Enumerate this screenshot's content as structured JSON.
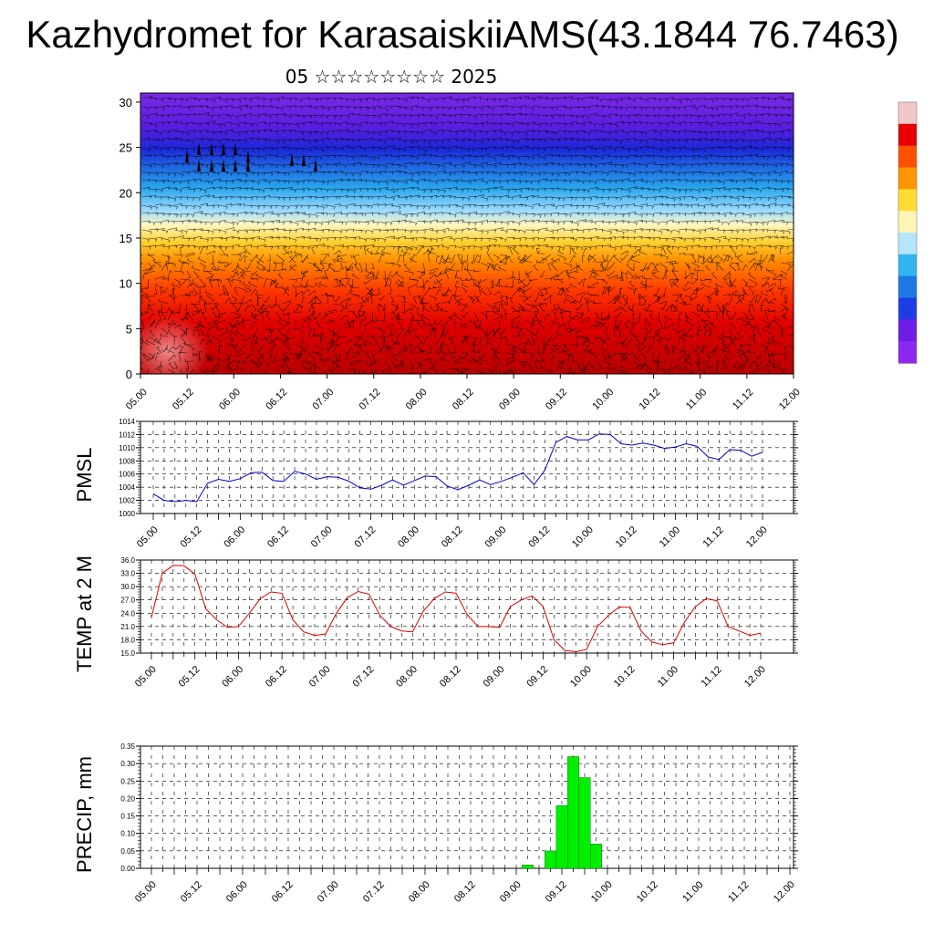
{
  "title": "Kazhydromet for KarasaiskiiAMS(43.1844 76.7463)",
  "subtitle": "05 ☆☆☆☆☆☆☆☆ 2025",
  "time_labels": [
    "05.00",
    "05.12",
    "06.00",
    "06.12",
    "07.00",
    "07.12",
    "08.00",
    "08.12",
    "09.00",
    "09.12",
    "10.00",
    "10.12",
    "11.00",
    "11.12",
    "12.00"
  ],
  "chart_data": [
    {
      "type": "heatmap",
      "title": "",
      "ylabel": "",
      "ylim": [
        0,
        31
      ],
      "yticks": [
        0,
        5,
        10,
        15,
        20,
        25,
        30
      ],
      "x": [
        "05.00",
        "05.12",
        "06.00",
        "06.12",
        "07.00",
        "07.12",
        "08.00",
        "08.12",
        "09.00",
        "09.12",
        "10.00",
        "10.12",
        "11.00",
        "11.12",
        "12.00"
      ],
      "colorbar_colors": [
        "#f0c8c8",
        "#e60000",
        "#ff5000",
        "#ff9600",
        "#ffdc32",
        "#fff5b4",
        "#b4e6ff",
        "#32b4f0",
        "#1e78e6",
        "#1e3ce6",
        "#6e1ee6",
        "#8c28f0"
      ],
      "note_wind_barbs": true
    },
    {
      "type": "line",
      "ylabel": "PMSL",
      "ylim": [
        1000,
        1014
      ],
      "yticks": [
        1000,
        1002,
        1004,
        1006,
        1008,
        1010,
        1012,
        1014
      ],
      "color": "#0000cc",
      "series": [
        {
          "values": [
            1003.0,
            1002.0,
            1001.8,
            1002.0,
            1001.8,
            1004.6,
            1005.2,
            1004.9,
            1005.3,
            1006.2,
            1006.3,
            1005.0,
            1004.9,
            1006.4,
            1006.0,
            1005.2,
            1005.6,
            1005.5,
            1004.9,
            1003.9,
            1003.7,
            1004.3,
            1005.1,
            1004.3,
            1005.0,
            1005.7,
            1005.6,
            1004.2,
            1003.6,
            1004.3,
            1005.1,
            1004.4,
            1004.9,
            1005.5,
            1006.2,
            1004.4,
            1006.6,
            1010.8,
            1011.7,
            1011.2,
            1011.2,
            1012.1,
            1012.0,
            1010.6,
            1010.4,
            1010.7,
            1010.4,
            1009.9,
            1010.1,
            1010.6,
            1010.2,
            1008.6,
            1008.2,
            1009.7,
            1009.6,
            1008.7,
            1009.3
          ]
        }
      ]
    },
    {
      "type": "line",
      "ylabel": "TEMP at 2 M",
      "ylim": [
        15,
        36
      ],
      "yticks": [
        "15.0",
        "18.0",
        "21.0",
        "24.0",
        "27.0",
        "30.0",
        "33.0",
        "36.0"
      ],
      "color": "#dd0000",
      "series": [
        {
          "values": [
            23.0,
            33.0,
            34.8,
            34.7,
            32.8,
            25.0,
            22.5,
            20.8,
            21.0,
            24.0,
            27.3,
            28.8,
            28.5,
            22.5,
            19.8,
            19.0,
            19.3,
            24.0,
            27.5,
            28.9,
            28.3,
            23.5,
            21.0,
            20.0,
            19.8,
            24.5,
            27.3,
            28.8,
            28.5,
            23.8,
            21.0,
            21.0,
            20.8,
            25.5,
            27.0,
            27.9,
            25.5,
            18.0,
            15.6,
            15.3,
            15.8,
            21.0,
            23.5,
            25.4,
            25.3,
            20.0,
            17.5,
            16.9,
            17.3,
            22.0,
            25.5,
            27.3,
            26.8,
            21.0,
            20.0,
            19.0,
            19.5
          ]
        }
      ]
    },
    {
      "type": "bar",
      "ylabel": "PRECIP, mm",
      "ylim": [
        0,
        0.35
      ],
      "yticks": [
        "0.00",
        "0.05",
        "0.10",
        "0.15",
        "0.20",
        "0.25",
        "0.30",
        "0.35"
      ],
      "color": "#00ee00",
      "bars": [
        {
          "x": "09.03",
          "value": 0.01
        },
        {
          "x": "09.09",
          "value": 0.05
        },
        {
          "x": "09.12",
          "value": 0.18
        },
        {
          "x": "09.15",
          "value": 0.32
        },
        {
          "x": "09.18",
          "value": 0.26
        },
        {
          "x": "09.21",
          "value": 0.07
        }
      ]
    }
  ]
}
